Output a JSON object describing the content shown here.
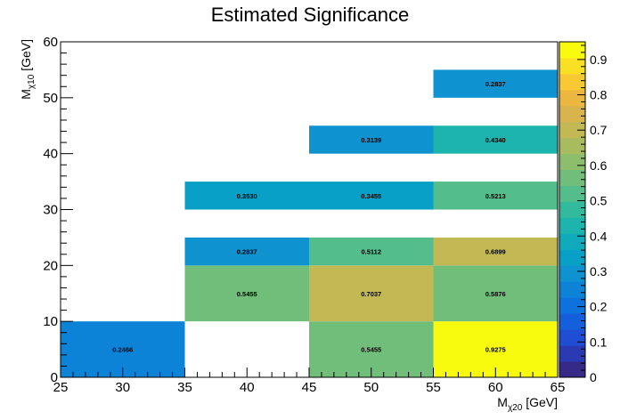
{
  "chart_data": {
    "type": "heatmap",
    "title": "Estimated Significance",
    "xlabel": {
      "base": "M",
      "sub": "χ20",
      "unit": " [GeV]"
    },
    "ylabel": {
      "base": "M",
      "sub": "χ10",
      "unit": " [GeV]"
    },
    "xlim": [
      25,
      65
    ],
    "ylim": [
      0,
      60
    ],
    "zlim": [
      0,
      0.95
    ],
    "x_ticks": [
      "25",
      "30",
      "35",
      "40",
      "45",
      "50",
      "55",
      "60",
      "65"
    ],
    "y_ticks": [
      "0",
      "10",
      "20",
      "30",
      "40",
      "50",
      "60"
    ],
    "z_ticks": [
      "0",
      "0.1",
      "0.2",
      "0.3",
      "0.4",
      "0.5",
      "0.6",
      "0.7",
      "0.8",
      "0.9"
    ],
    "cells": [
      {
        "x0": 25,
        "x1": 35,
        "y0": 0,
        "y1": 10,
        "value": 0.2466,
        "label": "0.2466"
      },
      {
        "x0": 45,
        "x1": 55,
        "y0": 0,
        "y1": 10,
        "value": 0.5455,
        "label": "0.5455"
      },
      {
        "x0": 55,
        "x1": 65,
        "y0": 0,
        "y1": 10,
        "value": 0.9275,
        "label": "0.9275"
      },
      {
        "x0": 35,
        "x1": 45,
        "y0": 10,
        "y1": 20,
        "value": 0.5455,
        "label": "0.5455"
      },
      {
        "x0": 45,
        "x1": 55,
        "y0": 10,
        "y1": 20,
        "value": 0.7037,
        "label": "0.7037"
      },
      {
        "x0": 55,
        "x1": 65,
        "y0": 10,
        "y1": 20,
        "value": 0.5876,
        "label": "0.5876"
      },
      {
        "x0": 35,
        "x1": 45,
        "y0": 20,
        "y1": 25,
        "value": 0.2837,
        "label": "0.2837"
      },
      {
        "x0": 45,
        "x1": 55,
        "y0": 20,
        "y1": 25,
        "value": 0.5112,
        "label": "0.5112"
      },
      {
        "x0": 55,
        "x1": 65,
        "y0": 20,
        "y1": 25,
        "value": 0.6899,
        "label": "0.6899"
      },
      {
        "x0": 35,
        "x1": 45,
        "y0": 30,
        "y1": 35,
        "value": 0.353,
        "label": "0.3530"
      },
      {
        "x0": 45,
        "x1": 55,
        "y0": 30,
        "y1": 35,
        "value": 0.3455,
        "label": "0.3455"
      },
      {
        "x0": 55,
        "x1": 65,
        "y0": 30,
        "y1": 35,
        "value": 0.5213,
        "label": "0.5213"
      },
      {
        "x0": 45,
        "x1": 55,
        "y0": 40,
        "y1": 45,
        "value": 0.3139,
        "label": "0.3139"
      },
      {
        "x0": 55,
        "x1": 65,
        "y0": 40,
        "y1": 45,
        "value": 0.434,
        "label": "0.4340"
      },
      {
        "x0": 55,
        "x1": 65,
        "y0": 50,
        "y1": 55,
        "value": 0.2837,
        "label": "0.2837"
      }
    ],
    "palette": [
      "#352a87",
      "#2a3ab2",
      "#1e4ed4",
      "#1460dc",
      "#0d72dc",
      "#0c83d6",
      "#0e92d0",
      "#08a0c6",
      "#0fabbc",
      "#1db4ad",
      "#32ba9c",
      "#53bd8b",
      "#70be79",
      "#8cbe6c",
      "#a8bc5f",
      "#c2b955",
      "#d9b34d",
      "#ecb73f",
      "#f8c932",
      "#f9e022",
      "#f9fb0e"
    ]
  }
}
